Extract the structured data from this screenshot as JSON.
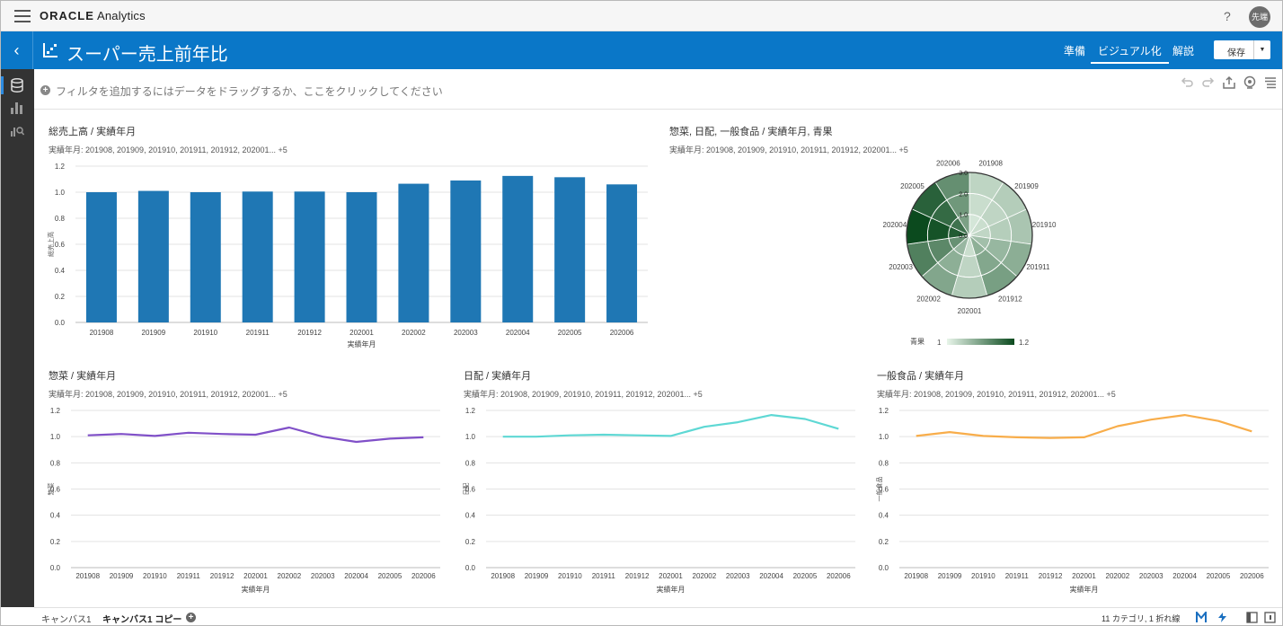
{
  "app": {
    "brand_bold": "ORACLE",
    "brand_rest": " Analytics",
    "help": "?",
    "user": "先端"
  },
  "header": {
    "back": "‹",
    "title": "スーパー売上前年比",
    "modes": {
      "prepare": "準備",
      "visualize": "ビジュアル化",
      "narrate": "解説"
    },
    "save": "保存"
  },
  "filter": {
    "plus": "+",
    "placeholder": "フィルタを追加するにはデータをドラッグするか、ここをクリックしてください"
  },
  "colors": {
    "accent": "#0a77c8",
    "bar": "#1f77b4",
    "line_souzai": "#8050c8",
    "line_nichihai": "#5ed8d4",
    "line_ippan": "#f8ad4a",
    "heat_low": "#e8f5ea",
    "heat_high": "#0b4a1e"
  },
  "viz": {
    "total": {
      "title": "総売上高 / 実績年月",
      "subtitle": "実績年月: 201908, 201909, 201910, 201911, 201912, 202001... +5"
    },
    "polar": {
      "title": "惣菜, 日配, 一般食品 / 実績年月, 青果",
      "subtitle": "実績年月: 201908, 201909, 201910, 201911, 201912, 202001... +5",
      "legend_label": "青果",
      "legend_min": "1",
      "legend_max": "1.2"
    },
    "souzai": {
      "title": "惣菜 / 実績年月",
      "subtitle": "実績年月: 201908, 201909, 201910, 201911, 201912, 202001... +5"
    },
    "nichihai": {
      "title": "日配 / 実績年月",
      "subtitle": "実績年月: 201908, 201909, 201910, 201911, 201912, 202001... +5"
    },
    "ippan": {
      "title": "一般食品 / 実績年月",
      "subtitle": "実績年月: 201908, 201909, 201910, 201911, 201912, 202001... +5"
    }
  },
  "chart_data": [
    {
      "type": "bar",
      "title": "総売上高 / 実績年月",
      "xlabel": "実績年月",
      "ylabel": "総売上高",
      "ylim": [
        0,
        1.2
      ],
      "yticks": [
        "0.0",
        "0.2",
        "0.4",
        "0.6",
        "0.8",
        "1.0",
        "1.2"
      ],
      "categories": [
        "201908",
        "201909",
        "201910",
        "201911",
        "201912",
        "202001",
        "202002",
        "202003",
        "202004",
        "202005",
        "202006"
      ],
      "values": [
        1.0,
        1.01,
        1.0,
        1.005,
        1.005,
        1.0,
        1.065,
        1.09,
        1.125,
        1.115,
        1.06
      ]
    },
    {
      "type": "polar-heatmap",
      "title": "惣菜, 日配, 一般食品 / 実績年月, 青果",
      "categories": [
        "201908",
        "201909",
        "201910",
        "201911",
        "201912",
        "202001",
        "202002",
        "202003",
        "202004",
        "202005",
        "202006"
      ],
      "rings": [
        "惣菜",
        "日配",
        "一般食品"
      ],
      "rticks": [
        "0.0",
        "1.0",
        "2.0",
        "3.0"
      ],
      "color_by": "青果",
      "color_range": [
        1,
        1.2
      ],
      "color_values": [
        1.02,
        1.03,
        1.04,
        1.07,
        1.09,
        1.03,
        1.08,
        1.13,
        1.2,
        1.17,
        1.11
      ]
    },
    {
      "type": "line",
      "title": "惣菜 / 実績年月",
      "xlabel": "実績年月",
      "ylabel": "惣菜",
      "ylim": [
        0,
        1.2
      ],
      "yticks": [
        "0.0",
        "0.2",
        "0.4",
        "0.6",
        "0.8",
        "1.0",
        "1.2"
      ],
      "categories": [
        "201908",
        "201909",
        "201910",
        "201911",
        "201912",
        "202001",
        "202002",
        "202003",
        "202004",
        "202005",
        "202006"
      ],
      "values": [
        1.01,
        1.02,
        1.005,
        1.03,
        1.02,
        1.015,
        1.07,
        1.0,
        0.96,
        0.985,
        0.995
      ]
    },
    {
      "type": "line",
      "title": "日配 / 実績年月",
      "xlabel": "実績年月",
      "ylabel": "日配",
      "ylim": [
        0,
        1.2
      ],
      "yticks": [
        "0.0",
        "0.2",
        "0.4",
        "0.6",
        "0.8",
        "1.0",
        "1.2"
      ],
      "categories": [
        "201908",
        "201909",
        "201910",
        "201911",
        "201912",
        "202001",
        "202002",
        "202003",
        "202004",
        "202005",
        "202006"
      ],
      "values": [
        1.0,
        1.0,
        1.01,
        1.015,
        1.01,
        1.005,
        1.075,
        1.11,
        1.165,
        1.135,
        1.06
      ]
    },
    {
      "type": "line",
      "title": "一般食品 / 実績年月",
      "xlabel": "実績年月",
      "ylabel": "一般食品",
      "ylim": [
        0,
        1.2
      ],
      "yticks": [
        "0.0",
        "0.2",
        "0.4",
        "0.6",
        "0.8",
        "1.0",
        "1.2"
      ],
      "categories": [
        "201908",
        "201909",
        "201910",
        "201911",
        "201912",
        "202001",
        "202002",
        "202003",
        "202004",
        "202005",
        "202006"
      ],
      "values": [
        1.005,
        1.035,
        1.005,
        0.995,
        0.99,
        0.995,
        1.08,
        1.13,
        1.165,
        1.12,
        1.04
      ]
    }
  ],
  "bottom": {
    "tab1": "キャンバス1",
    "tab2": "キャンバス1 コピー",
    "add": "+",
    "status": "11 カテゴリ, 1 折れ線"
  }
}
